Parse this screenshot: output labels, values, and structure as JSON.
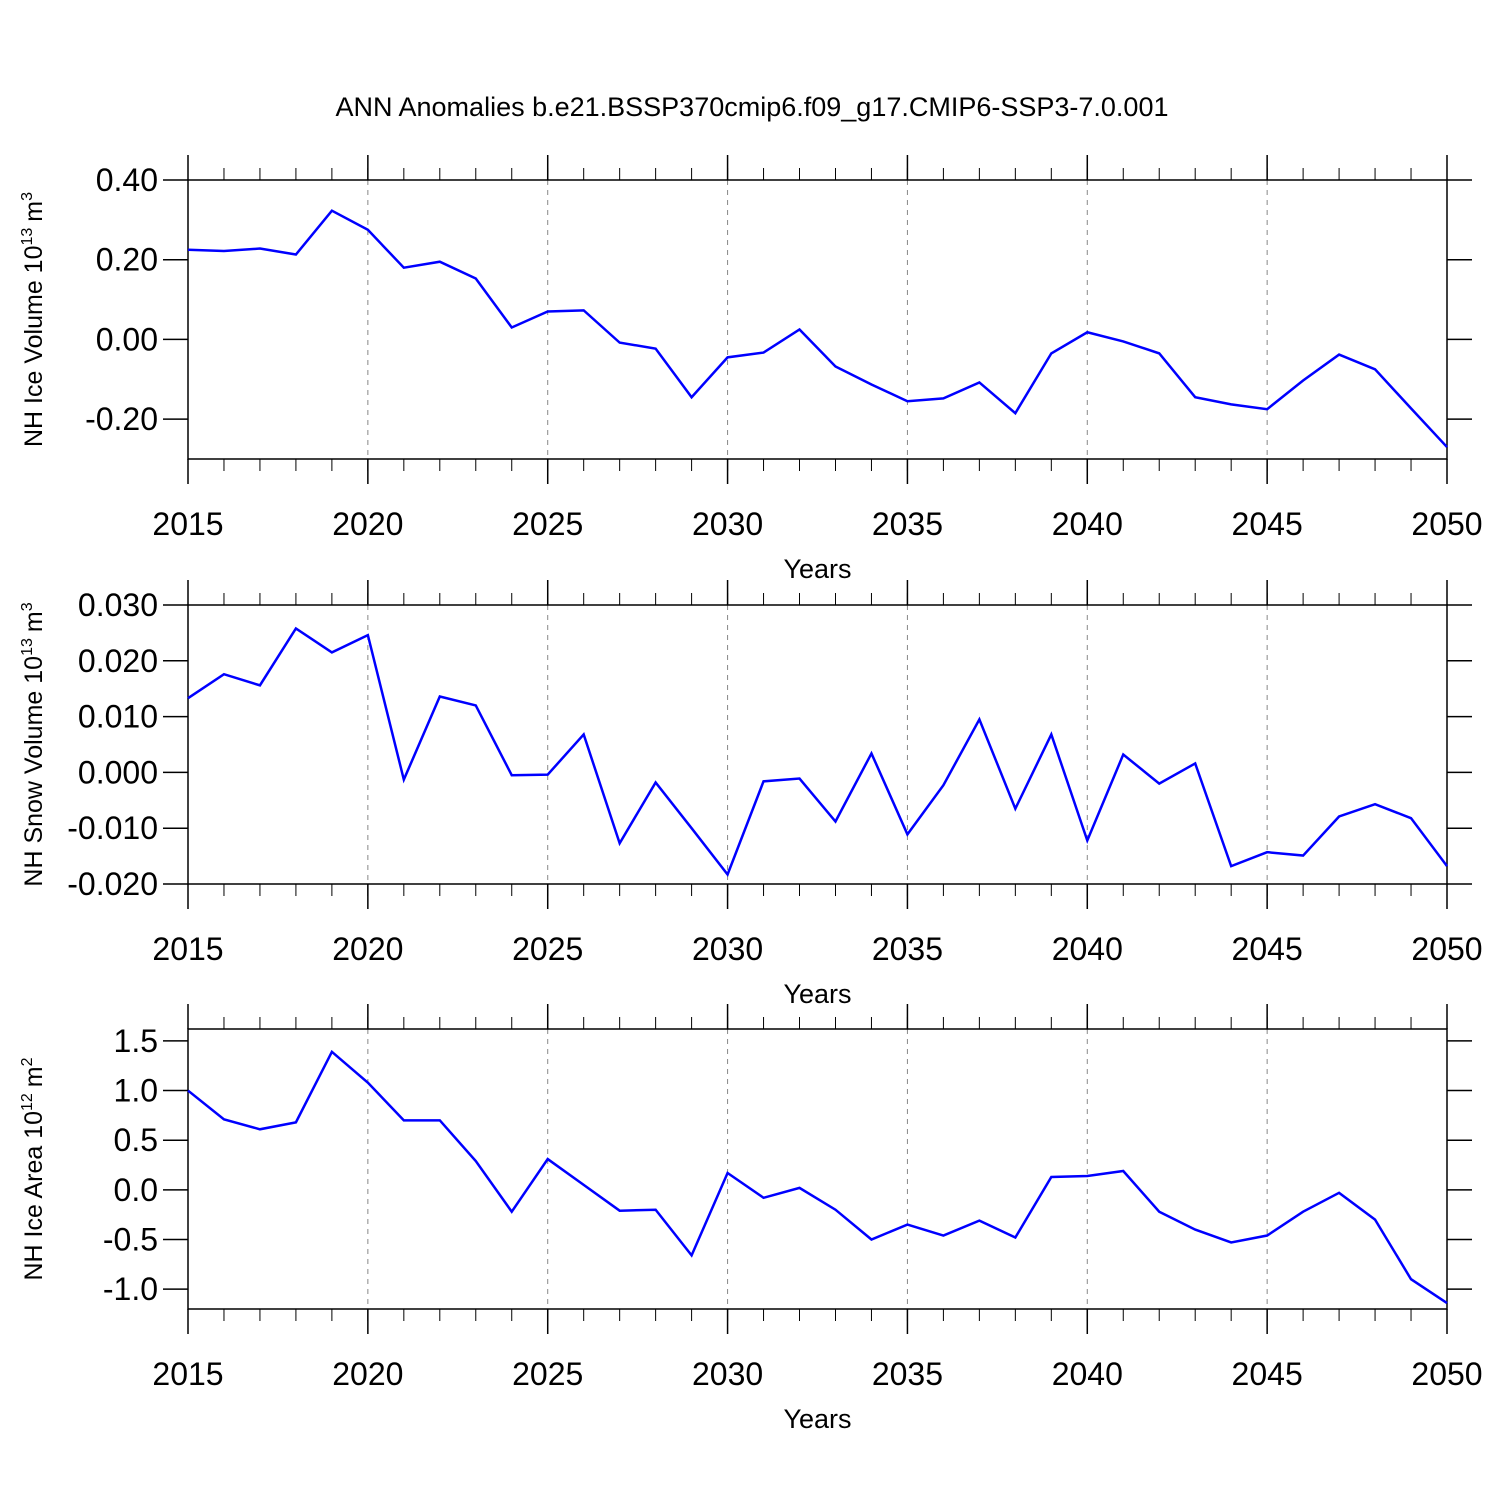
{
  "chart_data": [
    {
      "type": "line",
      "title": "ANN Anomalies b.e21.BSSP370cmip6.f09_g17.CMIP6-SSP3-7.0.001",
      "ylabel": "NH Ice Volume 10",
      "ylabel_exp": "13",
      "ylabel_unit": "m",
      "ylabel_unit_exp": "3",
      "xlabel": "Years",
      "x": [
        2015,
        2016,
        2017,
        2018,
        2019,
        2020,
        2021,
        2022,
        2023,
        2024,
        2025,
        2026,
        2027,
        2028,
        2029,
        2030,
        2031,
        2032,
        2033,
        2034,
        2035,
        2036,
        2037,
        2038,
        2039,
        2040,
        2041,
        2042,
        2043,
        2044,
        2045,
        2046,
        2047,
        2048,
        2049,
        2050
      ],
      "series": [
        {
          "color": "#0000ff",
          "values": [
            0.225,
            0.222,
            0.228,
            0.213,
            0.323,
            0.275,
            0.18,
            0.195,
            0.153,
            0.03,
            0.07,
            0.073,
            -0.008,
            -0.023,
            -0.145,
            -0.045,
            -0.033,
            0.025,
            -0.068,
            -0.113,
            -0.155,
            -0.148,
            -0.108,
            -0.185,
            -0.035,
            0.018,
            -0.005,
            -0.035,
            -0.145,
            -0.163,
            -0.175,
            -0.103,
            -0.038,
            -0.075,
            -0.173,
            -0.27
          ]
        }
      ],
      "xlim": [
        2015,
        2050
      ],
      "xticks": [
        2015,
        2020,
        2025,
        2030,
        2035,
        2040,
        2045,
        2050
      ],
      "ylim": [
        -0.3,
        0.4
      ],
      "yticks": [
        {
          "value": -0.2,
          "label": "-0.20"
        },
        {
          "value": 0,
          "label": "0.00"
        },
        {
          "value": 0.2,
          "label": "0.20"
        },
        {
          "value": 0.4,
          "label": "0.40"
        }
      ],
      "grid": true
    },
    {
      "type": "line",
      "ylabel": "NH Snow Volume 10",
      "ylabel_exp": "13",
      "ylabel_unit": "m",
      "ylabel_unit_exp": "3",
      "xlabel": "Years",
      "x": [
        2015,
        2016,
        2017,
        2018,
        2019,
        2020,
        2021,
        2022,
        2023,
        2024,
        2025,
        2026,
        2027,
        2028,
        2029,
        2030,
        2031,
        2032,
        2033,
        2034,
        2035,
        2036,
        2037,
        2038,
        2039,
        2040,
        2041,
        2042,
        2043,
        2044,
        2045,
        2046,
        2047,
        2048,
        2049,
        2050
      ],
      "series": [
        {
          "color": "#0000ff",
          "values": [
            0.0133,
            0.0176,
            0.0156,
            0.0258,
            0.0215,
            0.0246,
            -0.0013,
            0.0136,
            0.012,
            -0.0005,
            -0.0004,
            0.0068,
            -0.0127,
            -0.0018,
            -0.01,
            -0.0183,
            -0.0016,
            -0.0011,
            -0.0088,
            0.0034,
            -0.0111,
            -0.0023,
            0.0095,
            -0.0065,
            0.0068,
            -0.0122,
            0.0032,
            -0.002,
            0.0016,
            -0.0168,
            -0.0143,
            -0.0149,
            -0.0079,
            -0.0057,
            -0.0082,
            -0.0168
          ]
        }
      ],
      "xlim": [
        2015,
        2050
      ],
      "xticks": [
        2015,
        2020,
        2025,
        2030,
        2035,
        2040,
        2045,
        2050
      ],
      "ylim": [
        -0.02,
        0.03
      ],
      "yticks": [
        {
          "value": -0.02,
          "label": "-0.020"
        },
        {
          "value": -0.01,
          "label": "-0.010"
        },
        {
          "value": 0,
          "label": "0.000"
        },
        {
          "value": 0.01,
          "label": "0.010"
        },
        {
          "value": 0.02,
          "label": "0.020"
        },
        {
          "value": 0.03,
          "label": "0.030"
        }
      ],
      "grid": true
    },
    {
      "type": "line",
      "ylabel": "NH Ice Area 10",
      "ylabel_exp": "12",
      "ylabel_unit": "m",
      "ylabel_unit_exp": "2",
      "xlabel": "Years",
      "x": [
        2015,
        2016,
        2017,
        2018,
        2019,
        2020,
        2021,
        2022,
        2023,
        2024,
        2025,
        2026,
        2027,
        2028,
        2029,
        2030,
        2031,
        2032,
        2033,
        2034,
        2035,
        2036,
        2037,
        2038,
        2039,
        2040,
        2041,
        2042,
        2043,
        2044,
        2045,
        2046,
        2047,
        2048,
        2049,
        2050
      ],
      "series": [
        {
          "color": "#0000ff",
          "values": [
            1.0,
            0.71,
            0.61,
            0.68,
            1.39,
            1.08,
            0.7,
            0.7,
            0.29,
            -0.22,
            0.31,
            0.05,
            -0.21,
            -0.2,
            -0.66,
            0.17,
            -0.08,
            0.02,
            -0.2,
            -0.5,
            -0.35,
            -0.46,
            -0.31,
            -0.48,
            0.13,
            0.14,
            0.19,
            -0.22,
            -0.4,
            -0.53,
            -0.46,
            -0.22,
            -0.03,
            -0.3,
            -0.9,
            -1.14
          ]
        }
      ],
      "xlim": [
        2015,
        2050
      ],
      "xticks": [
        2015,
        2020,
        2025,
        2030,
        2035,
        2040,
        2045,
        2050
      ],
      "ylim": [
        -1.2,
        1.62
      ],
      "yticks": [
        {
          "value": -1,
          "label": "-1.0"
        },
        {
          "value": -0.5,
          "label": "-0.5"
        },
        {
          "value": 0,
          "label": "0.0"
        },
        {
          "value": 0.5,
          "label": "0.5"
        },
        {
          "value": 1,
          "label": "1.0"
        },
        1.5
      ],
      "grid": true
    }
  ]
}
